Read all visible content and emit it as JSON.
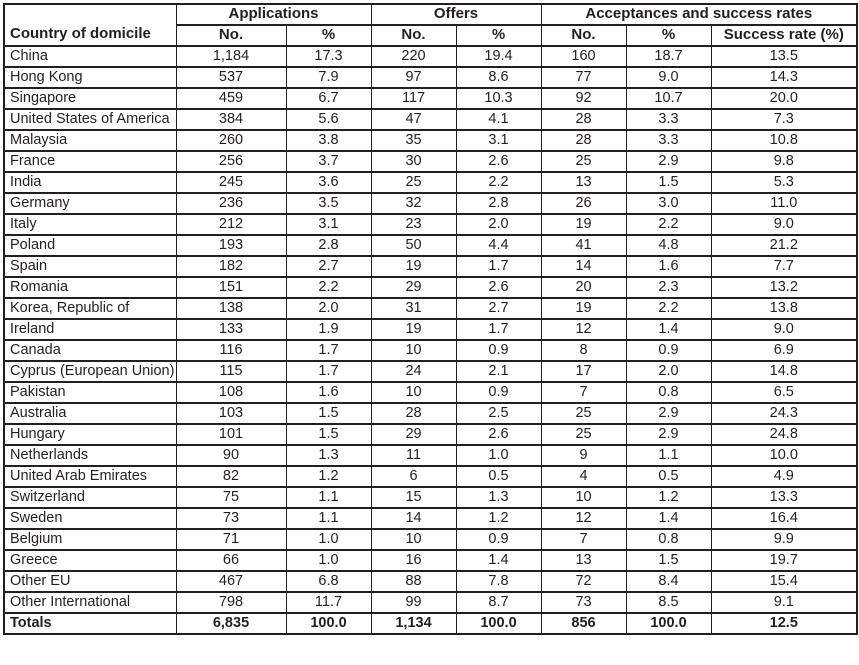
{
  "table": {
    "corner_header": "Country of domicile",
    "groups": [
      {
        "label": "Applications",
        "span": 2
      },
      {
        "label": "Offers",
        "span": 2
      },
      {
        "label": "Acceptances and success rates",
        "span": 3
      }
    ],
    "sub_headers": [
      "No.",
      "%",
      "No.",
      "%",
      "No.",
      "%",
      "Success rate (%)"
    ],
    "rows": [
      {
        "country": "China",
        "values": [
          "1,184",
          "17.3",
          "220",
          "19.4",
          "160",
          "18.7",
          "13.5"
        ]
      },
      {
        "country": "Hong Kong",
        "values": [
          "537",
          "7.9",
          "97",
          "8.6",
          "77",
          "9.0",
          "14.3"
        ]
      },
      {
        "country": "Singapore",
        "values": [
          "459",
          "6.7",
          "117",
          "10.3",
          "92",
          "10.7",
          "20.0"
        ]
      },
      {
        "country": "United States of America",
        "values": [
          "384",
          "5.6",
          "47",
          "4.1",
          "28",
          "3.3",
          "7.3"
        ]
      },
      {
        "country": "Malaysia",
        "values": [
          "260",
          "3.8",
          "35",
          "3.1",
          "28",
          "3.3",
          "10.8"
        ]
      },
      {
        "country": "France",
        "values": [
          "256",
          "3.7",
          "30",
          "2.6",
          "25",
          "2.9",
          "9.8"
        ]
      },
      {
        "country": "India",
        "values": [
          "245",
          "3.6",
          "25",
          "2.2",
          "13",
          "1.5",
          "5.3"
        ]
      },
      {
        "country": "Germany",
        "values": [
          "236",
          "3.5",
          "32",
          "2.8",
          "26",
          "3.0",
          "11.0"
        ]
      },
      {
        "country": "Italy",
        "values": [
          "212",
          "3.1",
          "23",
          "2.0",
          "19",
          "2.2",
          "9.0"
        ]
      },
      {
        "country": "Poland",
        "values": [
          "193",
          "2.8",
          "50",
          "4.4",
          "41",
          "4.8",
          "21.2"
        ]
      },
      {
        "country": "Spain",
        "values": [
          "182",
          "2.7",
          "19",
          "1.7",
          "14",
          "1.6",
          "7.7"
        ]
      },
      {
        "country": "Romania",
        "values": [
          "151",
          "2.2",
          "29",
          "2.6",
          "20",
          "2.3",
          "13.2"
        ]
      },
      {
        "country": "Korea, Republic of",
        "values": [
          "138",
          "2.0",
          "31",
          "2.7",
          "19",
          "2.2",
          "13.8"
        ]
      },
      {
        "country": "Ireland",
        "values": [
          "133",
          "1.9",
          "19",
          "1.7",
          "12",
          "1.4",
          "9.0"
        ]
      },
      {
        "country": "Canada",
        "values": [
          "116",
          "1.7",
          "10",
          "0.9",
          "8",
          "0.9",
          "6.9"
        ]
      },
      {
        "country": "Cyprus (European Union)",
        "values": [
          "115",
          "1.7",
          "24",
          "2.1",
          "17",
          "2.0",
          "14.8"
        ]
      },
      {
        "country": "Pakistan",
        "values": [
          "108",
          "1.6",
          "10",
          "0.9",
          "7",
          "0.8",
          "6.5"
        ]
      },
      {
        "country": "Australia",
        "values": [
          "103",
          "1.5",
          "28",
          "2.5",
          "25",
          "2.9",
          "24.3"
        ]
      },
      {
        "country": "Hungary",
        "values": [
          "101",
          "1.5",
          "29",
          "2.6",
          "25",
          "2.9",
          "24.8"
        ]
      },
      {
        "country": "Netherlands",
        "values": [
          "90",
          "1.3",
          "11",
          "1.0",
          "9",
          "1.1",
          "10.0"
        ]
      },
      {
        "country": "United Arab Emirates",
        "values": [
          "82",
          "1.2",
          "6",
          "0.5",
          "4",
          "0.5",
          "4.9"
        ]
      },
      {
        "country": "Switzerland",
        "values": [
          "75",
          "1.1",
          "15",
          "1.3",
          "10",
          "1.2",
          "13.3"
        ]
      },
      {
        "country": "Sweden",
        "values": [
          "73",
          "1.1",
          "14",
          "1.2",
          "12",
          "1.4",
          "16.4"
        ]
      },
      {
        "country": "Belgium",
        "values": [
          "71",
          "1.0",
          "10",
          "0.9",
          "7",
          "0.8",
          "9.9"
        ]
      },
      {
        "country": "Greece",
        "values": [
          "66",
          "1.0",
          "16",
          "1.4",
          "13",
          "1.5",
          "19.7"
        ]
      },
      {
        "country": "Other EU",
        "values": [
          "467",
          "6.8",
          "88",
          "7.8",
          "72",
          "8.4",
          "15.4"
        ]
      },
      {
        "country": "Other International",
        "values": [
          "798",
          "11.7",
          "99",
          "8.7",
          "73",
          "8.5",
          "9.1"
        ]
      }
    ],
    "totals": {
      "label": "Totals",
      "values": [
        "6,835",
        "100.0",
        "1,134",
        "100.0",
        "856",
        "100.0",
        "12.5"
      ]
    }
  },
  "colors": {
    "border": "#231f20",
    "text": "#231f20",
    "background": "#ffffff"
  }
}
